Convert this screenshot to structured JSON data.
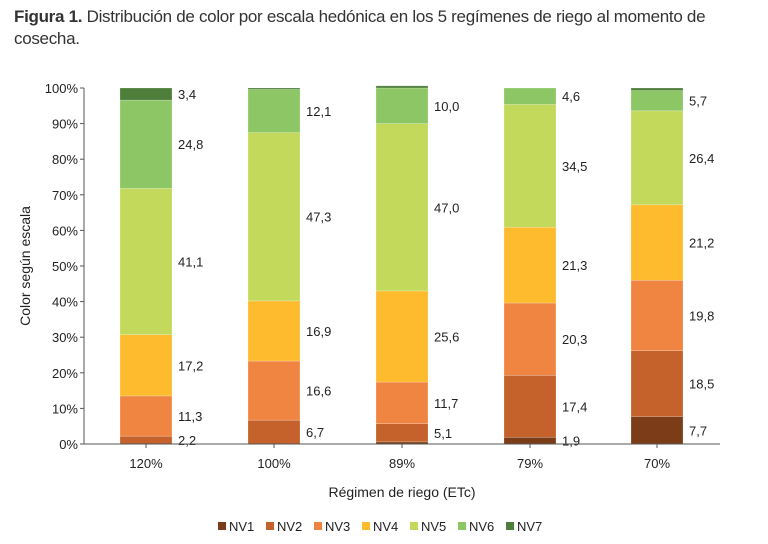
{
  "chart_data": {
    "type": "bar",
    "stacked": true,
    "title_bold": "Figura 1.",
    "title": "Distribución de color por escala hedónica en los 5 regímenes de riego al momento de cosecha.",
    "xlabel": "Régimen de riego (ETc)",
    "ylabel": "Color según escala",
    "ylim": [
      0,
      100
    ],
    "yticks": [
      "0%",
      "10%",
      "20%",
      "30%",
      "40%",
      "50%",
      "60%",
      "70%",
      "80%",
      "90%",
      "100%"
    ],
    "categories": [
      "120%",
      "100%",
      "89%",
      "79%",
      "70%"
    ],
    "legend_position": "bottom",
    "series": [
      {
        "name": "NV1",
        "color": "#7b3c17",
        "values": [
          0,
          0,
          0.6,
          1.9,
          7.7
        ],
        "labels": [
          null,
          null,
          null,
          "1,9",
          "7,7"
        ]
      },
      {
        "name": "NV2",
        "color": "#c5612a",
        "values": [
          2.2,
          6.7,
          5.1,
          17.4,
          18.5
        ],
        "labels": [
          "2,2",
          "6,7",
          "5,1",
          "17,4",
          "18,5"
        ]
      },
      {
        "name": "NV3",
        "color": "#f08541",
        "values": [
          11.3,
          16.6,
          11.7,
          20.3,
          19.8
        ],
        "labels": [
          "11,3",
          "16,6",
          "11,7",
          "20,3",
          "19,8"
        ]
      },
      {
        "name": "NV4",
        "color": "#fdbb2d",
        "values": [
          17.2,
          16.9,
          25.6,
          21.3,
          21.2
        ],
        "labels": [
          "17,2",
          "16,9",
          "25,6",
          "21,3",
          "21,2"
        ]
      },
      {
        "name": "NV5",
        "color": "#c3d95b",
        "values": [
          41.1,
          47.3,
          47.0,
          34.5,
          26.4
        ],
        "labels": [
          "41,1",
          "47,3",
          "47,0",
          "34,5",
          "26,4"
        ]
      },
      {
        "name": "NV6",
        "color": "#8dc765",
        "values": [
          24.8,
          12.1,
          10.0,
          4.6,
          5.7
        ],
        "labels": [
          "24,8",
          "12,1",
          "10,0",
          "4,6",
          "5,7"
        ]
      },
      {
        "name": "NV7",
        "color": "#4d7e3a",
        "values": [
          3.4,
          0.4,
          0.6,
          0,
          0.7
        ],
        "labels": [
          "3,4",
          null,
          null,
          null,
          null
        ]
      }
    ]
  }
}
